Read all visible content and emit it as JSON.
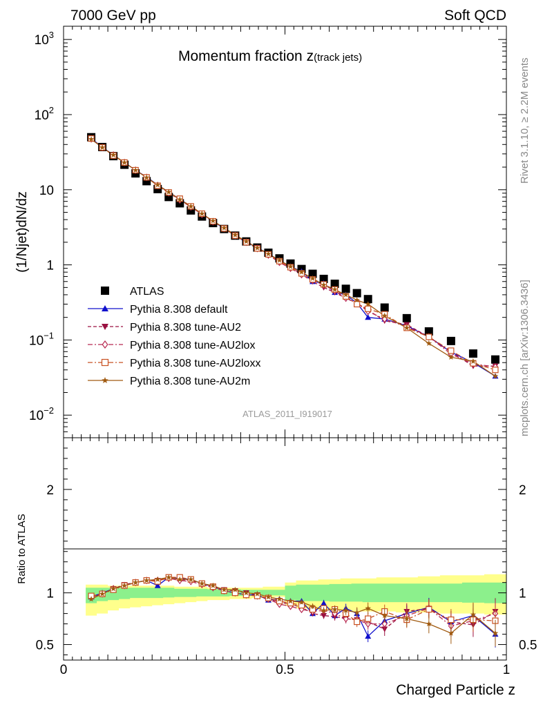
{
  "header": {
    "left": "7000 GeV pp",
    "right": "Soft QCD"
  },
  "side_labels": {
    "rivet": "Rivet 3.1.10, ≥ 2.2M events",
    "mcplots": "mcplots.cern.ch [arXiv:1306.3436]"
  },
  "chart_data": [
    {
      "type": "scatter",
      "title": "Momentum fraction z",
      "title_sub": "(track jets)",
      "ylabel": "(1/Njet)dN/dz",
      "yscale": "log",
      "ylim": [
        0.005,
        1500
      ],
      "xlim": [
        0,
        1.0
      ],
      "yticks": [
        {
          "v": 0.01,
          "base": "10",
          "exp": "−2"
        },
        {
          "v": 0.1,
          "base": "10",
          "exp": "−1"
        },
        {
          "v": 1,
          "base": "1",
          "exp": ""
        },
        {
          "v": 10,
          "base": "10",
          "exp": ""
        },
        {
          "v": 100,
          "base": "10",
          "exp": "2"
        },
        {
          "v": 1000,
          "base": "10",
          "exp": "3"
        }
      ],
      "reference_label": "ATLAS_2011_I919017",
      "legend_position": "lower-left",
      "x": [
        0.0625,
        0.0875,
        0.1125,
        0.1375,
        0.1625,
        0.1875,
        0.2125,
        0.2375,
        0.2625,
        0.2875,
        0.3125,
        0.3375,
        0.3625,
        0.3875,
        0.4125,
        0.4375,
        0.4625,
        0.4875,
        0.5125,
        0.5375,
        0.5625,
        0.5875,
        0.6125,
        0.6375,
        0.6625,
        0.6875,
        0.725,
        0.775,
        0.825,
        0.875,
        0.925,
        0.975
      ],
      "series": [
        {
          "name": "ATLAS",
          "color": "#000000",
          "marker": "square",
          "line": "none",
          "values": [
            50,
            37,
            28,
            21.5,
            16.5,
            13,
            10.2,
            8.0,
            6.6,
            5.3,
            4.4,
            3.6,
            3.0,
            2.45,
            2.05,
            1.7,
            1.45,
            1.22,
            1.04,
            0.88,
            0.76,
            0.65,
            0.56,
            0.48,
            0.42,
            0.35,
            0.27,
            0.195,
            0.13,
            0.097,
            0.066,
            0.055
          ]
        },
        {
          "name": "Pythia 8.308 default",
          "color": "#1010cc",
          "marker": "triangle-up",
          "line": "solid",
          "values": [
            48,
            37,
            29,
            23,
            18.2,
            14.8,
            11.6,
            9.3,
            7.5,
            6.0,
            4.8,
            3.8,
            3.05,
            2.45,
            2.0,
            1.7,
            1.4,
            1.15,
            0.95,
            0.82,
            0.6,
            0.57,
            0.43,
            0.4,
            0.31,
            0.2,
            0.19,
            0.155,
            0.11,
            0.069,
            0.05,
            0.033
          ]
        },
        {
          "name": "Pythia 8.308 tune-AU2",
          "color": "#9a1040",
          "marker": "triangle-down",
          "line": "dashed",
          "values": [
            47.5,
            36.5,
            29,
            23,
            18.3,
            14.6,
            11.4,
            9.2,
            7.4,
            5.9,
            4.8,
            3.8,
            3.1,
            2.5,
            2.05,
            1.7,
            1.4,
            1.12,
            0.93,
            0.75,
            0.6,
            0.5,
            0.43,
            0.36,
            0.31,
            0.25,
            0.18,
            0.16,
            0.11,
            0.069,
            0.045,
            0.045
          ]
        },
        {
          "name": "Pythia 8.308 tune-AU2lox",
          "color": "#b82850",
          "marker": "diamond-open",
          "line": "dashdot",
          "values": [
            47.5,
            36.5,
            29,
            23,
            18.2,
            14.6,
            11.4,
            9.1,
            7.3,
            5.9,
            4.7,
            3.75,
            3.05,
            2.45,
            2.0,
            1.65,
            1.35,
            1.08,
            0.9,
            0.74,
            0.62,
            0.54,
            0.45,
            0.36,
            0.31,
            0.24,
            0.19,
            0.15,
            0.11,
            0.065,
            0.048,
            0.044
          ]
        },
        {
          "name": "Pythia 8.308 tune-AU2loxx",
          "color": "#c85020",
          "marker": "square-open",
          "line": "dashdot",
          "values": [
            48,
            36.5,
            28.5,
            23,
            18.2,
            14.6,
            11.3,
            9.2,
            7.6,
            6.0,
            4.8,
            3.8,
            3.05,
            2.45,
            2.0,
            1.65,
            1.38,
            1.12,
            0.93,
            0.77,
            0.64,
            0.55,
            0.47,
            0.38,
            0.3,
            0.26,
            0.22,
            0.145,
            0.11,
            0.072,
            0.049,
            0.04
          ]
        },
        {
          "name": "Pythia 8.308 tune-AU2m",
          "color": "#a05a10",
          "marker": "star",
          "line": "solid",
          "values": [
            47,
            36.5,
            29,
            23,
            18.2,
            14.5,
            11.6,
            9.3,
            7.4,
            6.0,
            4.8,
            3.85,
            3.1,
            2.5,
            2.05,
            1.68,
            1.4,
            1.15,
            0.95,
            0.8,
            0.66,
            0.54,
            0.47,
            0.4,
            0.34,
            0.3,
            0.21,
            0.145,
            0.09,
            0.059,
            0.052,
            0.033
          ]
        }
      ]
    },
    {
      "type": "scatter",
      "ylabel": "Ratio to ATLAS",
      "xlabel": "Charged Particle z",
      "ylim": [
        0.35,
        2.5
      ],
      "xlim": [
        0,
        1.0
      ],
      "yticks": [
        0.5,
        1,
        2
      ],
      "xticks": [
        0,
        0.5,
        1
      ],
      "xtick_labels": [
        "0",
        "0.5",
        "1"
      ],
      "yticks_right_labels": [
        "0.5",
        "1",
        "2"
      ],
      "band_1sigma_low": [
        0.9,
        0.92,
        0.93,
        0.94,
        0.95,
        0.95,
        0.95,
        0.955,
        0.96,
        0.96,
        0.965,
        0.965,
        0.965,
        0.97,
        0.97,
        0.97,
        0.975,
        0.975,
        0.93,
        0.92,
        0.92,
        0.92,
        0.915,
        0.915,
        0.915,
        0.91,
        0.91,
        0.91,
        0.91,
        0.91,
        0.905,
        0.9
      ],
      "band_1sigma_high": [
        1.05,
        1.05,
        1.05,
        1.05,
        1.05,
        1.05,
        1.05,
        1.05,
        1.04,
        1.04,
        1.04,
        1.035,
        1.035,
        1.035,
        1.03,
        1.03,
        1.03,
        1.03,
        1.07,
        1.08,
        1.08,
        1.08,
        1.085,
        1.085,
        1.09,
        1.09,
        1.09,
        1.09,
        1.09,
        1.09,
        1.1,
        1.1
      ],
      "band_2sigma_low": [
        0.78,
        0.8,
        0.83,
        0.85,
        0.86,
        0.87,
        0.88,
        0.89,
        0.9,
        0.91,
        0.92,
        0.93,
        0.93,
        0.94,
        0.94,
        0.95,
        0.95,
        0.96,
        0.88,
        0.85,
        0.84,
        0.84,
        0.83,
        0.83,
        0.82,
        0.82,
        0.82,
        0.81,
        0.81,
        0.8,
        0.8,
        0.79
      ],
      "band_2sigma_high": [
        1.08,
        1.08,
        1.07,
        1.07,
        1.07,
        1.07,
        1.07,
        1.07,
        1.06,
        1.06,
        1.06,
        1.05,
        1.05,
        1.05,
        1.05,
        1.05,
        1.06,
        1.06,
        1.1,
        1.12,
        1.12,
        1.13,
        1.13,
        1.14,
        1.14,
        1.14,
        1.15,
        1.15,
        1.16,
        1.17,
        1.17,
        1.18
      ],
      "band_colors": {
        "inner": "#8cf08c",
        "outer": "#ffff8c"
      },
      "series": [
        {
          "name": "Pythia 8.308 default",
          "color": "#1010cc",
          "marker": "triangle-up",
          "line": "solid",
          "values": [
            0.96,
            1.0,
            1.04,
            1.07,
            1.1,
            1.12,
            1.07,
            1.15,
            1.14,
            1.13,
            1.09,
            1.06,
            1.02,
            1.0,
            0.98,
            0.98,
            0.93,
            0.94,
            0.92,
            0.92,
            0.8,
            0.9,
            0.78,
            0.85,
            0.8,
            0.58,
            0.73,
            0.8,
            0.86,
            0.72,
            0.78,
            0.6
          ]
        },
        {
          "name": "Pythia 8.308 tune-AU2",
          "color": "#9a1040",
          "marker": "triangle-down",
          "line": "dashed",
          "values": [
            0.95,
            0.99,
            1.04,
            1.08,
            1.1,
            1.12,
            1.12,
            1.15,
            1.13,
            1.12,
            1.09,
            1.06,
            1.03,
            1.02,
            1.0,
            0.98,
            0.94,
            0.91,
            0.89,
            0.86,
            0.8,
            0.78,
            0.77,
            0.75,
            0.74,
            0.72,
            0.65,
            0.82,
            0.85,
            0.72,
            0.69,
            0.82
          ]
        },
        {
          "name": "Pythia 8.308 tune-AU2lox",
          "color": "#b82850",
          "marker": "diamond-open",
          "line": "dashdot",
          "values": [
            0.96,
            0.99,
            1.04,
            1.07,
            1.1,
            1.12,
            1.12,
            1.14,
            1.12,
            1.11,
            1.08,
            1.05,
            1.02,
            1.0,
            0.98,
            0.97,
            0.94,
            0.89,
            0.87,
            0.84,
            0.82,
            0.83,
            0.8,
            0.75,
            0.74,
            0.7,
            0.7,
            0.78,
            0.85,
            0.68,
            0.73,
            0.8
          ]
        },
        {
          "name": "Pythia 8.308 tune-AU2loxx",
          "color": "#c85020",
          "marker": "square-open",
          "line": "dashdot",
          "values": [
            0.97,
            0.99,
            1.03,
            1.07,
            1.1,
            1.12,
            1.11,
            1.15,
            1.15,
            1.13,
            1.09,
            1.06,
            1.02,
            1.0,
            0.98,
            0.97,
            0.95,
            0.92,
            0.9,
            0.88,
            0.84,
            0.85,
            0.84,
            0.8,
            0.72,
            0.75,
            0.82,
            0.74,
            0.84,
            0.74,
            0.74,
            0.73
          ]
        },
        {
          "name": "Pythia 8.308 tune-AU2m",
          "color": "#a05a10",
          "marker": "star",
          "line": "solid",
          "values": [
            0.94,
            0.99,
            1.04,
            1.07,
            1.1,
            1.12,
            1.13,
            1.15,
            1.13,
            1.13,
            1.09,
            1.07,
            1.03,
            1.03,
            1.0,
            0.99,
            0.96,
            0.94,
            0.92,
            0.91,
            0.87,
            0.83,
            0.84,
            0.83,
            0.81,
            0.85,
            0.78,
            0.75,
            0.7,
            0.61,
            0.79,
            0.61
          ]
        }
      ]
    }
  ]
}
